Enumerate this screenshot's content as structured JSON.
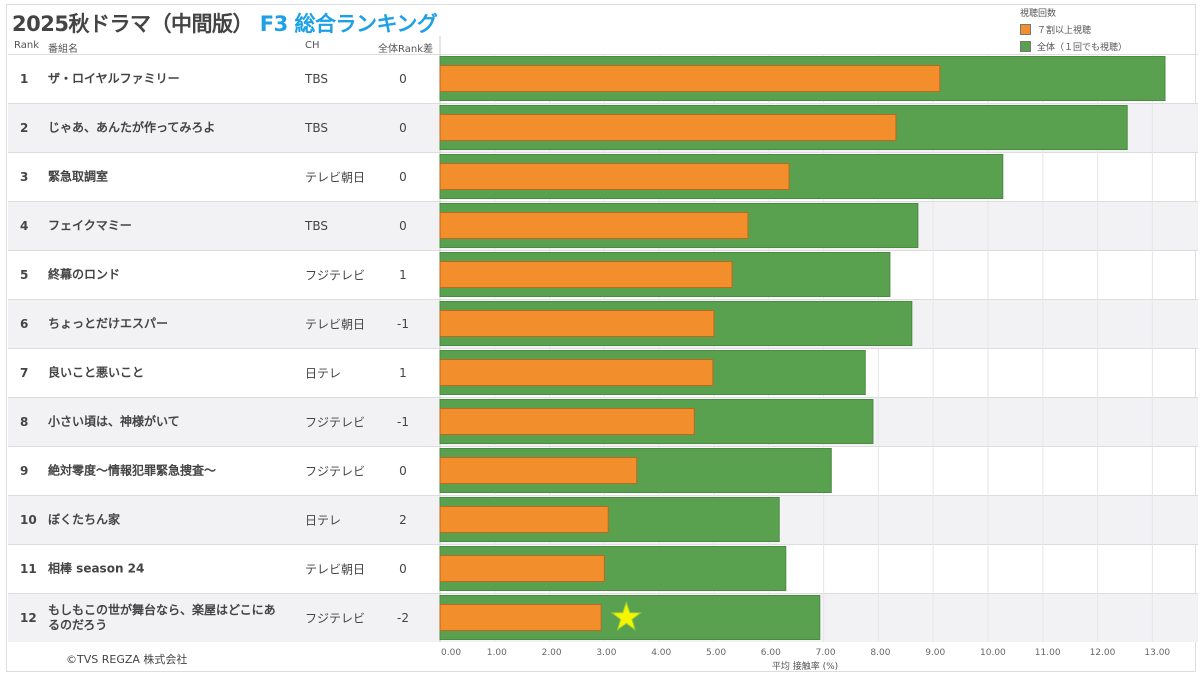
{
  "title": {
    "main": "2025秋ドラマ（中間版）",
    "accent": "F3 総合ランキング"
  },
  "columns": {
    "rank": "Rank",
    "name": "番組名",
    "ch": "CH",
    "diff": "全体Rank差"
  },
  "legend": {
    "title": "視聴回数",
    "items": [
      {
        "label": "７割以上視聴",
        "color": "#f28e2b"
      },
      {
        "label": "全体（１回でも視聴）",
        "color": "#59a14f"
      }
    ]
  },
  "rows": [
    {
      "rank": "1",
      "name": "ザ・ロイヤルファミリー",
      "ch": "TBS",
      "diff": "0"
    },
    {
      "rank": "2",
      "name": "じゃあ、あんたが作ってみろよ",
      "ch": "TBS",
      "diff": "0"
    },
    {
      "rank": "3",
      "name": "緊急取調室",
      "ch": "テレビ朝日",
      "diff": "0"
    },
    {
      "rank": "4",
      "name": "フェイクマミー",
      "ch": "TBS",
      "diff": "0"
    },
    {
      "rank": "5",
      "name": "終幕のロンド",
      "ch": "フジテレビ",
      "diff": "1"
    },
    {
      "rank": "6",
      "name": "ちょっとだけエスパー",
      "ch": "テレビ朝日",
      "diff": "-1"
    },
    {
      "rank": "7",
      "name": "良いこと悪いこと",
      "ch": "日テレ",
      "diff": "1"
    },
    {
      "rank": "8",
      "name": "小さい頃は、神様がいて",
      "ch": "フジテレビ",
      "diff": "-1"
    },
    {
      "rank": "9",
      "name": "絶対零度～情報犯罪緊急捜査～",
      "ch": "フジテレビ",
      "diff": "0"
    },
    {
      "rank": "10",
      "name": "ぼくたちん家",
      "ch": "日テレ",
      "diff": "2"
    },
    {
      "rank": "11",
      "name": "相棒 season 24",
      "ch": "テレビ朝日",
      "diff": "0"
    },
    {
      "rank": "12",
      "name": "もしもこの世が舞台なら、楽屋はどこにあるのだろう",
      "ch": "フジテレビ",
      "diff": "-2"
    }
  ],
  "copyright": "©TVS REGZA 株式会社",
  "chart_data": {
    "type": "bar",
    "orientation": "horizontal",
    "categories": [
      "ザ・ロイヤルファミリー",
      "じゃあ、あんたが作ってみろよ",
      "緊急取調室",
      "フェイクマミー",
      "終幕のロンド",
      "ちょっとだけエスパー",
      "良いこと悪いこと",
      "小さい頃は、神様がいて",
      "絶対零度～情報犯罪緊急捜査～",
      "ぼくたちん家",
      "相棒 season 24",
      "もしもこの世が舞台なら、楽屋はどこにあるのだろう"
    ],
    "series": [
      {
        "name": "全体（１回でも視聴）",
        "color": "#59a14f",
        "values": [
          13.23,
          12.54,
          10.27,
          8.72,
          8.21,
          8.61,
          7.76,
          7.9,
          7.14,
          6.19,
          6.31,
          6.93
        ]
      },
      {
        "name": "７割以上視聴",
        "color": "#f28e2b",
        "values": [
          9.12,
          8.32,
          6.37,
          5.62,
          5.33,
          5.0,
          4.98,
          4.64,
          3.59,
          3.07,
          3.0,
          2.94
        ]
      }
    ],
    "xlabel": "平均 接触率 (%)",
    "xlim": [
      0,
      13.8
    ],
    "ticks": [
      "0.00",
      "1.00",
      "2.00",
      "3.00",
      "4.00",
      "5.00",
      "6.00",
      "7.00",
      "8.00",
      "9.00",
      "10.00",
      "11.00",
      "12.00",
      "13.00"
    ],
    "grid": true,
    "legend_position": "top-right",
    "annotation": {
      "type": "star",
      "row": 12,
      "x": 3.4,
      "color": "#f5f500"
    }
  }
}
